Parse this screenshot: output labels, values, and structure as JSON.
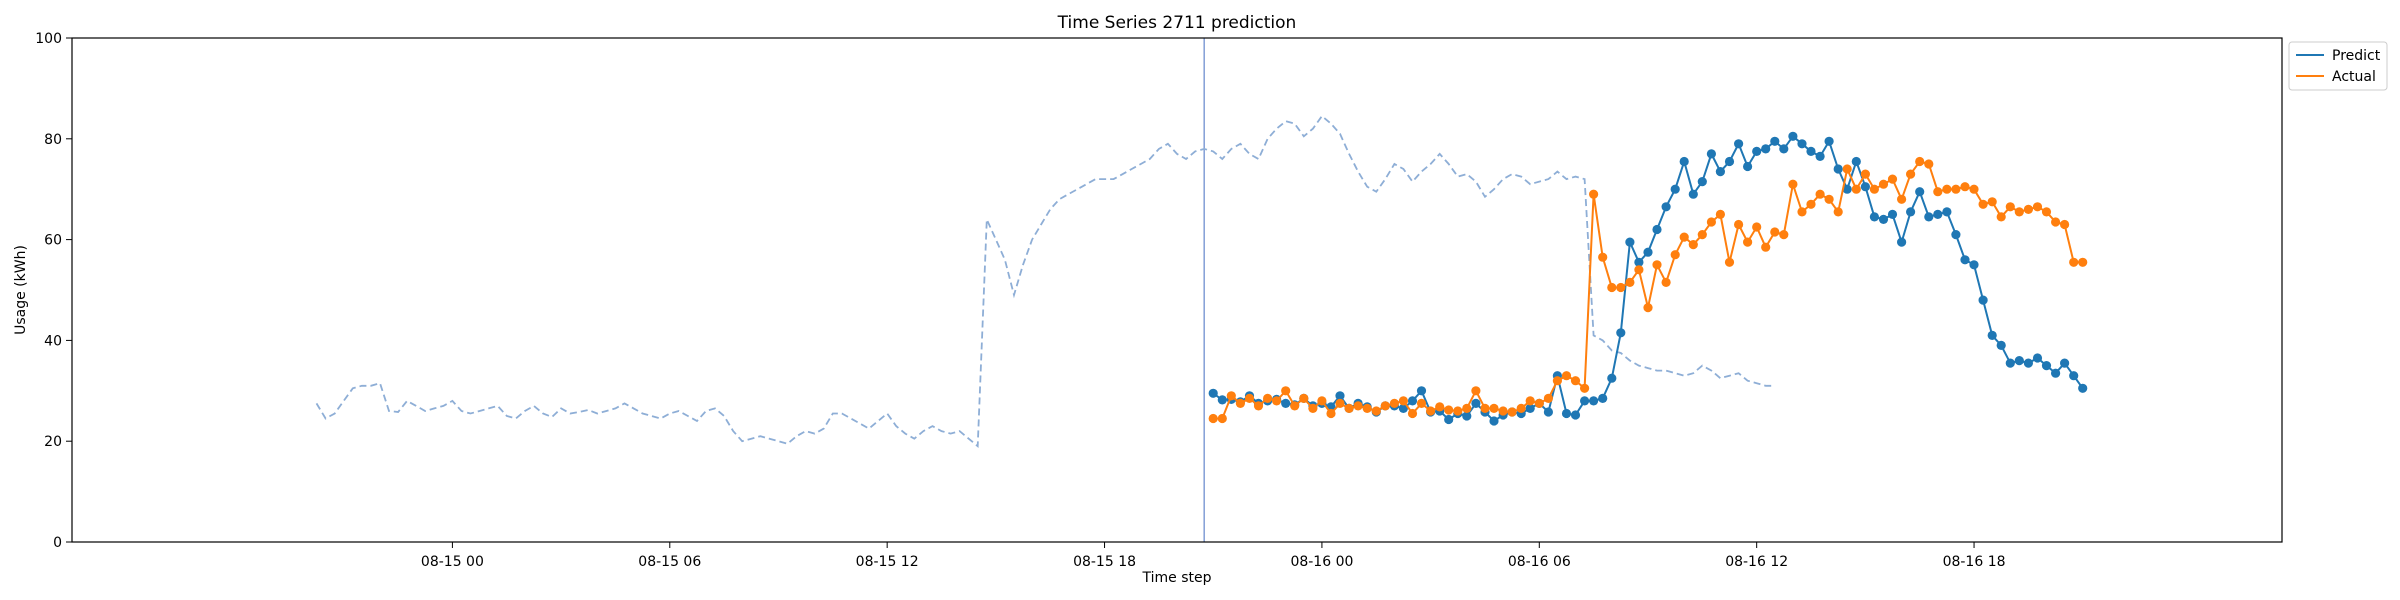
{
  "chart_data": {
    "type": "line",
    "title": "Time Series 2711 prediction",
    "xlabel": "Time step",
    "ylabel": "Usage (kWh)",
    "ylim": [
      0,
      100
    ],
    "yticks": [
      0,
      20,
      40,
      60,
      80,
      100
    ],
    "xlim": [
      "2024-08-14 13:30",
      "2024-08-17 02:30"
    ],
    "xticks": [
      {
        "t": "2024-08-15 00:00",
        "label": "08-15 00"
      },
      {
        "t": "2024-08-15 06:00",
        "label": "08-15 06"
      },
      {
        "t": "2024-08-15 12:00",
        "label": "08-15 12"
      },
      {
        "t": "2024-08-15 18:00",
        "label": "08-15 18"
      },
      {
        "t": "2024-08-16 00:00",
        "label": "08-16 00"
      },
      {
        "t": "2024-08-16 06:00",
        "label": "08-16 06"
      },
      {
        "t": "2024-08-16 12:00",
        "label": "08-16 12"
      },
      {
        "t": "2024-08-16 18:00",
        "label": "08-16 18"
      }
    ],
    "interval_minutes": 15,
    "legend_position": "top-right",
    "grid": false,
    "split_time": "2024-08-15 20:45",
    "series": [
      {
        "name": "",
        "style": "dashed",
        "color": "#8eaed6",
        "start": "2024-08-14 20:15",
        "values": [
          27.5,
          24.5,
          25.5,
          28,
          30.5,
          31,
          31,
          31.5,
          26,
          25.8,
          28,
          27,
          26,
          26.5,
          27,
          28,
          26,
          25.5,
          26,
          26.5,
          27,
          25,
          24.5,
          26,
          27,
          25.5,
          24.8,
          26.5,
          25.5,
          25.8,
          26.2,
          25.5,
          26,
          26.5,
          27.5,
          26.5,
          25.5,
          25,
          24.5,
          25.5,
          26,
          25,
          24,
          26,
          26.5,
          25,
          22,
          20,
          20.5,
          21,
          20.5,
          20,
          19.5,
          21,
          22,
          21.5,
          22.5,
          25.5,
          25.5,
          24.5,
          23.5,
          22.5,
          24,
          25.5,
          23,
          21.5,
          20.5,
          22,
          23,
          22,
          21.5,
          22,
          20.5,
          19,
          64,
          60,
          56,
          49,
          55,
          60,
          63,
          66,
          68,
          69,
          70,
          71,
          72,
          72,
          72,
          73,
          74,
          75,
          76,
          78,
          79,
          77,
          76,
          77.5,
          78,
          77.5,
          76,
          78,
          79,
          77,
          76,
          80,
          82,
          83.5,
          83,
          80.5,
          82,
          84.5,
          83,
          81,
          77,
          73.5,
          70.5,
          69.5,
          72,
          75,
          74,
          71.5,
          73.5,
          75,
          77,
          75,
          72.5,
          73,
          71.5,
          68.5,
          70,
          72,
          73,
          72.5,
          71,
          71.5,
          72,
          73.5,
          72,
          72.5,
          72,
          41,
          40,
          38,
          37.5,
          36,
          35,
          34.5,
          34,
          34,
          33.5,
          33,
          33.5,
          35,
          34,
          32.5,
          33,
          33.5,
          32,
          31.5,
          31,
          31
        ]
      },
      {
        "name": "Predict",
        "style": "solid-markers",
        "color": "#1f77b4",
        "start": "2024-08-15 21:00",
        "values": [
          29.5,
          28.2,
          28.3,
          27.8,
          29,
          27.5,
          28,
          28.3,
          27.5,
          27.2,
          28.5,
          27,
          27.5,
          26.8,
          29,
          26.5,
          27.5,
          26.8,
          25.8,
          27,
          27,
          26.5,
          28,
          30,
          25.8,
          26,
          24.3,
          25.5,
          25,
          27.5,
          25.8,
          24,
          25.2,
          25.8,
          25.5,
          26.5,
          27.5,
          25.8,
          33,
          25.5,
          25.2,
          28,
          28,
          28.5,
          32.5,
          41.5,
          59.5,
          55.5,
          57.5,
          62,
          66.5,
          70,
          75.5,
          69,
          71.5,
          77,
          73.5,
          75.5,
          79,
          74.5,
          77.5,
          78,
          79.5,
          78,
          80.5,
          79,
          77.5,
          76.5,
          79.5,
          74,
          70,
          75.5,
          70.5,
          64.5,
          64,
          65,
          59.5,
          65.5,
          69.5,
          64.5,
          65,
          65.5,
          61,
          56,
          55,
          48,
          41,
          39,
          35.5,
          36,
          35.5,
          36.5,
          35,
          33.5,
          35.5,
          33,
          30.5
        ]
      },
      {
        "name": "Actual",
        "style": "solid-markers",
        "color": "#ff7f0e",
        "start": "2024-08-15 21:00",
        "values": [
          24.5,
          24.5,
          29,
          27.5,
          28.5,
          27,
          28.5,
          28,
          30,
          27,
          28.5,
          26.5,
          28,
          25.5,
          27.5,
          26.5,
          27,
          26.5,
          26,
          27,
          27.5,
          28,
          25.5,
          27.5,
          26,
          26.8,
          26.2,
          26,
          26.5,
          30,
          26.5,
          26.5,
          26,
          25.8,
          26.5,
          28,
          27.5,
          28.5,
          32,
          33,
          32,
          30.5,
          69,
          56.5,
          50.5,
          50.5,
          51.5,
          54,
          46.5,
          55,
          51.5,
          57,
          60.5,
          59,
          61,
          63.5,
          65,
          55.5,
          63,
          59.5,
          62.5,
          58.5,
          61.5,
          61,
          71,
          65.5,
          67,
          69,
          68,
          65.5,
          74,
          70,
          73,
          70,
          71,
          72,
          68,
          73,
          75.5,
          75,
          69.5,
          70,
          70,
          70.5,
          70,
          67,
          67.5,
          64.5,
          66.5,
          65.5,
          66,
          66.5,
          65.5,
          63.5,
          63,
          55.5,
          55.5
        ]
      }
    ]
  }
}
